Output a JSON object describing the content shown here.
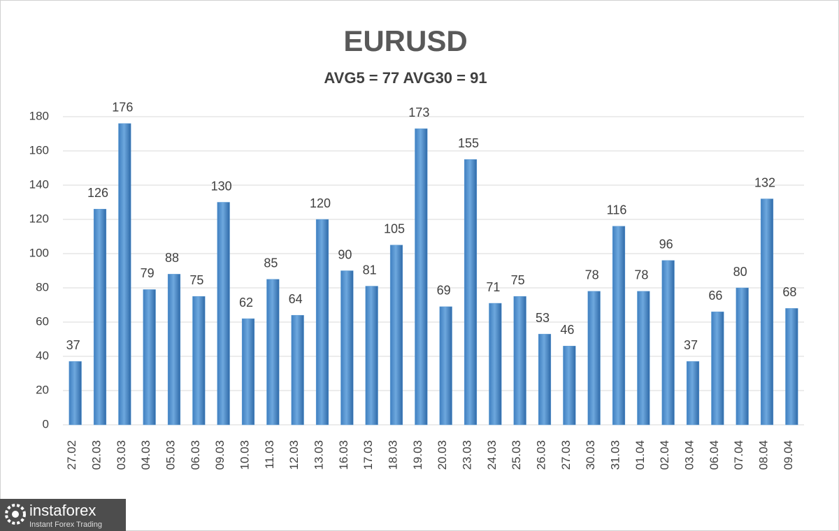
{
  "chart_data": {
    "type": "bar",
    "title": "EURUSD",
    "subtitle": "AVG5 = 77 AVG30 = 91",
    "categories": [
      "27.02",
      "02.03",
      "03.03",
      "04.03",
      "05.03",
      "06.03",
      "09.03",
      "10.03",
      "11.03",
      "12.03",
      "13.03",
      "16.03",
      "17.03",
      "18.03",
      "19.03",
      "20.03",
      "23.03",
      "24.03",
      "25.03",
      "26.03",
      "27.03",
      "30.03",
      "31.03",
      "01.04",
      "02.04",
      "03.04",
      "06.04",
      "07.04",
      "08.04",
      "09.04"
    ],
    "values": [
      37,
      126,
      176,
      79,
      88,
      75,
      130,
      62,
      85,
      64,
      120,
      90,
      81,
      105,
      173,
      69,
      155,
      71,
      75,
      53,
      46,
      78,
      116,
      78,
      96,
      37,
      66,
      80,
      132,
      68
    ],
    "color": "#5b9bd5",
    "ylim": [
      0,
      180
    ],
    "yticks": [
      0,
      20,
      40,
      60,
      80,
      100,
      120,
      140,
      160,
      180
    ],
    "grid": true
  },
  "logo": {
    "name": "instaforex",
    "tagline": "Instant Forex Trading"
  }
}
